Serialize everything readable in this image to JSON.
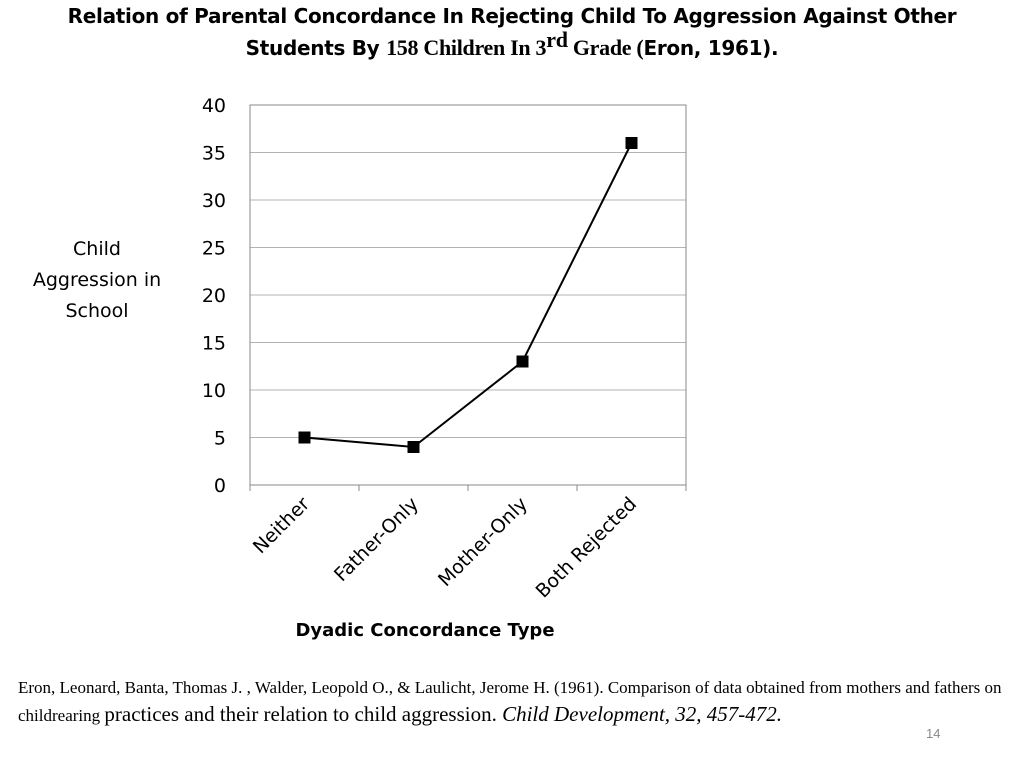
{
  "title": {
    "line1": "Relation of Parental Concordance In Rejecting Child To Aggression Against Other",
    "line2_start": "Students By ",
    "line2_serif": "158 Children In 3",
    "line2_sup": "rd",
    "line2_serif_end": " Grade (",
    "line2_end": "Eron, 1961)."
  },
  "chart_data": {
    "type": "line",
    "categories": [
      "Neither",
      "Father-Only",
      "Mother-Only",
      "Both Rejected"
    ],
    "values": [
      5,
      4,
      13,
      36
    ],
    "ylabel": "Child Aggression in School",
    "xlabel": "Dyadic Concordance Type",
    "ylim": [
      0,
      40
    ],
    "yticks": [
      "0",
      "5",
      "10",
      "15",
      "20",
      "25",
      "30",
      "35",
      "40"
    ],
    "grid": true,
    "marker": "square",
    "line_color": "#000000",
    "grid_color": "#b3b3b3"
  },
  "citation": {
    "part1": "Eron, Leonard, Banta, Thomas J. , Walder, Leopold O., & Laulicht, Jerome H. (1961). Comparison of data obtained from mothers and fathers on childrearing ",
    "part2": "practices and their relation to child aggression. ",
    "part3": "Child Development, 32, 457-472."
  },
  "page_number": "14"
}
